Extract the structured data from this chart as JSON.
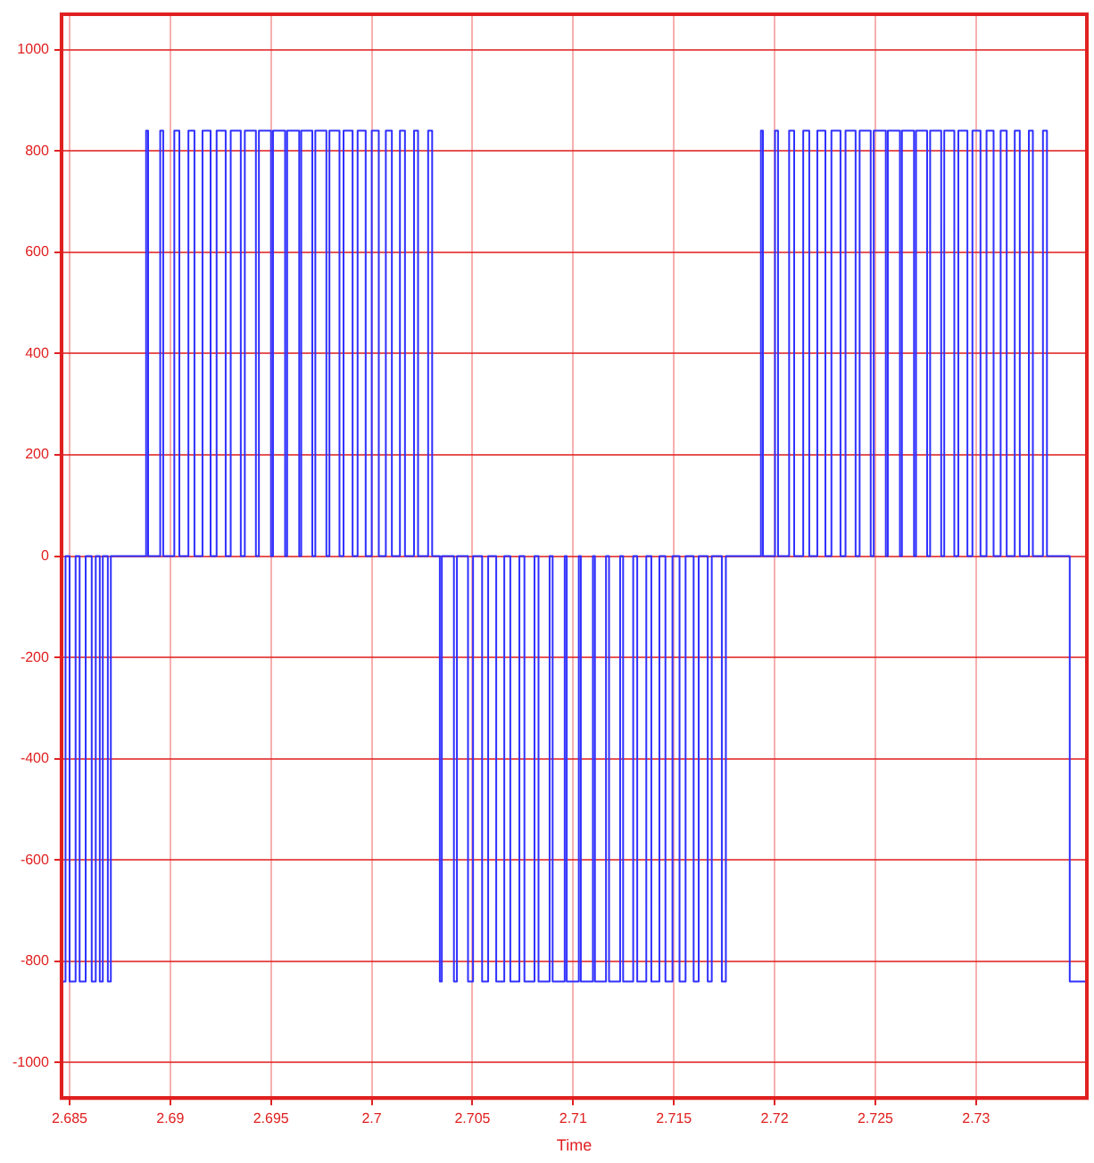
{
  "chart_data": {
    "type": "step",
    "xlabel": "Time",
    "xlim": [
      2.6846,
      2.7355
    ],
    "ylim": [
      -1070,
      1070
    ],
    "xticks": [
      2.685,
      2.69,
      2.695,
      2.7,
      2.705,
      2.71,
      2.715,
      2.72,
      2.725,
      2.73
    ],
    "yticks": [
      -1000,
      -800,
      -600,
      -400,
      -200,
      0,
      200,
      400,
      600,
      800,
      1000
    ],
    "grid": true,
    "legend": false,
    "marker": "none",
    "line_style": "solid",
    "series": [
      {
        "color": "#3030ff",
        "x": [
          2.68465,
          2.6848,
          2.685,
          2.6853,
          2.6855,
          2.6858,
          2.6861,
          2.6863,
          2.6865,
          2.68665,
          2.6869,
          2.68705,
          2.6888,
          2.6889,
          2.6895,
          2.68965,
          2.6902,
          2.69045,
          2.6909,
          2.6912,
          2.6916,
          2.692,
          2.6923,
          2.69275,
          2.693,
          2.6935,
          2.6937,
          2.69425,
          2.6944,
          2.695,
          2.6951,
          2.6957,
          2.6958,
          2.6964,
          2.6965,
          2.69705,
          2.6972,
          2.69775,
          2.6979,
          2.6984,
          2.6986,
          2.69905,
          2.6993,
          2.6997,
          2.7,
          2.70035,
          2.7007,
          2.701,
          2.7014,
          2.70165,
          2.7021,
          2.7023,
          2.7028,
          2.703,
          2.70338,
          2.70348,
          2.70408,
          2.70423,
          2.70478,
          2.70503,
          2.70548,
          2.70578,
          2.70618,
          2.70658,
          2.70688,
          2.70733,
          2.70758,
          2.70808,
          2.70828,
          2.70883,
          2.70898,
          2.70958,
          2.70968,
          2.71028,
          2.71038,
          2.71098,
          2.71108,
          2.71163,
          2.71178,
          2.71233,
          2.71248,
          2.71298,
          2.71318,
          2.71363,
          2.71388,
          2.71428,
          2.71458,
          2.71493,
          2.71528,
          2.71558,
          2.71598,
          2.71623,
          2.71668,
          2.71688,
          2.71738,
          2.71758,
          2.71932,
          2.71942,
          2.72002,
          2.72017,
          2.72072,
          2.72097,
          2.72142,
          2.72172,
          2.72212,
          2.72252,
          2.72282,
          2.72327,
          2.72352,
          2.72402,
          2.72422,
          2.72477,
          2.72492,
          2.72552,
          2.72562,
          2.72622,
          2.72632,
          2.72692,
          2.72702,
          2.72757,
          2.72772,
          2.72827,
          2.72842,
          2.72892,
          2.72912,
          2.72957,
          2.72982,
          2.73022,
          2.73052,
          2.73087,
          2.73122,
          2.73152,
          2.73192,
          2.73217,
          2.73262,
          2.73282,
          2.73332,
          2.73352,
          2.73465,
          2.7355
        ],
        "values": [
          -840,
          0,
          -840,
          0,
          -840,
          0,
          -840,
          0,
          -840,
          0,
          -840,
          0,
          840,
          0,
          840,
          0,
          840,
          0,
          840,
          0,
          840,
          0,
          840,
          0,
          840,
          0,
          840,
          0,
          840,
          0,
          840,
          0,
          840,
          0,
          840,
          0,
          840,
          0,
          840,
          0,
          840,
          0,
          840,
          0,
          840,
          0,
          840,
          0,
          840,
          0,
          840,
          0,
          840,
          0,
          -840,
          0,
          -840,
          0,
          -840,
          0,
          -840,
          0,
          -840,
          0,
          -840,
          0,
          -840,
          0,
          -840,
          0,
          -840,
          0,
          -840,
          0,
          -840,
          0,
          -840,
          0,
          -840,
          0,
          -840,
          0,
          -840,
          0,
          -840,
          0,
          -840,
          0,
          -840,
          0,
          -840,
          0,
          -840,
          0,
          -840,
          0,
          840,
          0,
          840,
          0,
          840,
          0,
          840,
          0,
          840,
          0,
          840,
          0,
          840,
          0,
          840,
          0,
          840,
          0,
          840,
          0,
          840,
          0,
          840,
          0,
          840,
          0,
          840,
          0,
          840,
          0,
          840,
          0,
          840,
          0,
          840,
          0,
          840,
          0,
          840,
          0,
          840,
          0,
          -840,
          -840
        ]
      }
    ]
  }
}
